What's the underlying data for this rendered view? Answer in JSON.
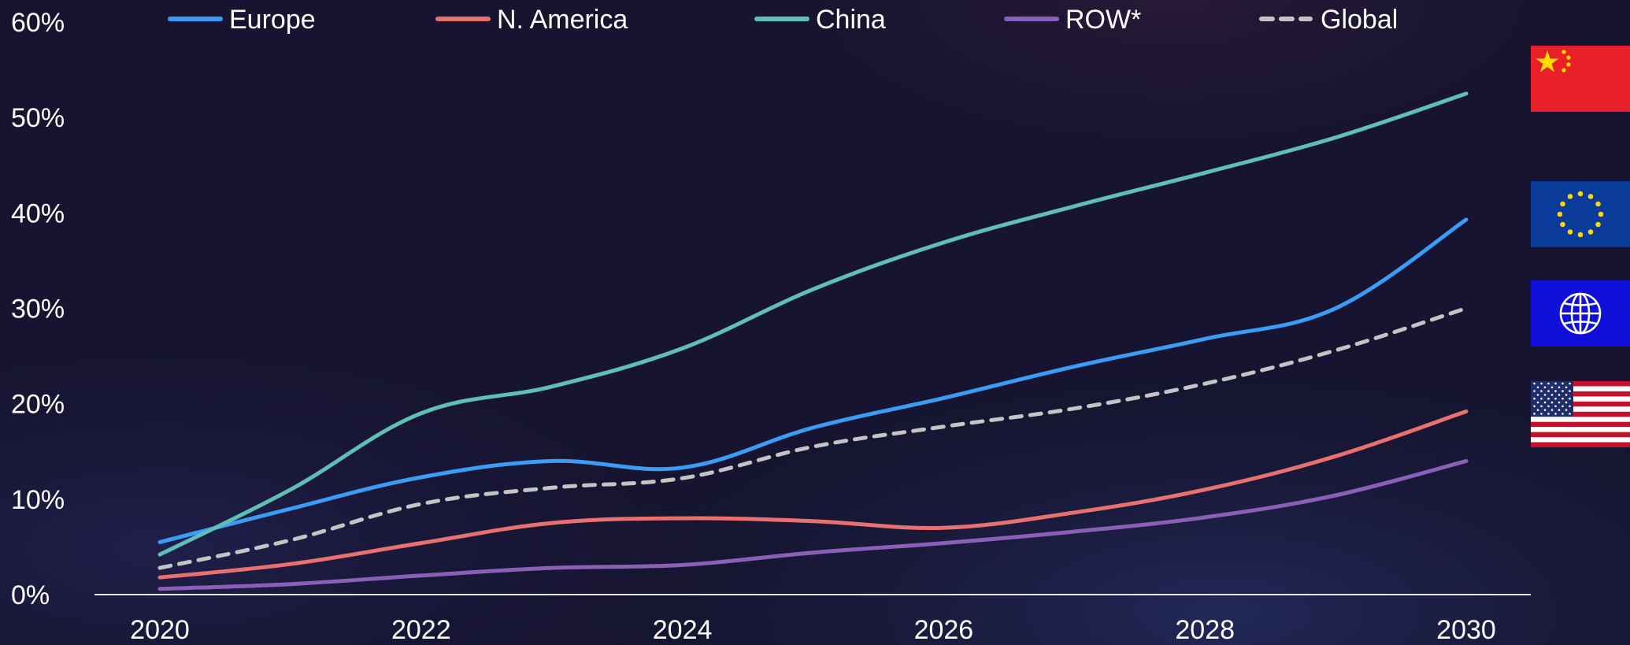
{
  "chart_data": {
    "type": "line",
    "title": "",
    "xlabel": "",
    "ylabel": "",
    "x": [
      2020,
      2021,
      2022,
      2023,
      2024,
      2025,
      2026,
      2027,
      2028,
      2029,
      2030
    ],
    "xticks": [
      "2020",
      "2022",
      "2024",
      "2026",
      "2028",
      "2030"
    ],
    "yticks": [
      "0%",
      "10%",
      "20%",
      "30%",
      "40%",
      "50%",
      "60%"
    ],
    "xlim": [
      2019.5,
      2030.5
    ],
    "ylim": [
      0,
      60
    ],
    "legend_position": "top",
    "grid": false,
    "series": [
      {
        "name": "Europe",
        "color": "#3a9cf5",
        "dashed": false,
        "values": [
          5.5,
          9.0,
          12.3,
          14.0,
          13.3,
          17.5,
          20.6,
          23.9,
          26.8,
          30.0,
          39.3
        ]
      },
      {
        "name": "N. America",
        "color": "#e8706e",
        "dashed": false,
        "values": [
          1.8,
          3.2,
          5.4,
          7.5,
          8.0,
          7.7,
          7.0,
          8.6,
          11.0,
          14.5,
          19.2
        ]
      },
      {
        "name": "China",
        "color": "#5fbfb6",
        "dashed": false,
        "values": [
          4.2,
          11.0,
          19.0,
          21.8,
          25.8,
          32.0,
          36.9,
          40.7,
          44.2,
          47.9,
          52.5
        ]
      },
      {
        "name": "ROW*",
        "color": "#8a5fb8",
        "dashed": false,
        "values": [
          0.6,
          1.1,
          2.0,
          2.8,
          3.1,
          4.4,
          5.4,
          6.6,
          8.1,
          10.4,
          14.0
        ]
      },
      {
        "name": "Global",
        "color": "#c4c4c4",
        "dashed": true,
        "values": [
          2.8,
          5.7,
          9.5,
          11.2,
          12.2,
          15.5,
          17.6,
          19.5,
          22.1,
          25.6,
          30.0
        ]
      }
    ]
  },
  "flags": [
    {
      "id": "china",
      "icon": "china-flag-icon"
    },
    {
      "id": "eu",
      "icon": "eu-flag-icon"
    },
    {
      "id": "global",
      "icon": "globe-flag-icon"
    },
    {
      "id": "usa",
      "icon": "usa-flag-icon"
    }
  ]
}
